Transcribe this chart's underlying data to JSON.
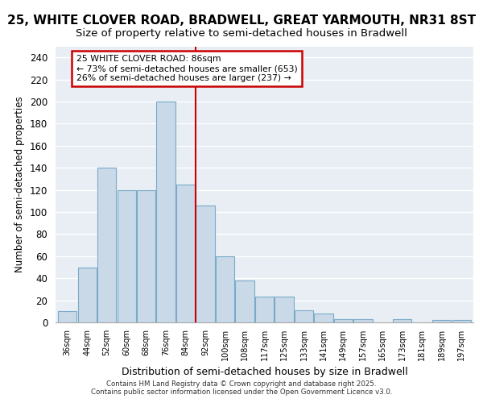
{
  "title1": "25, WHITE CLOVER ROAD, BRADWELL, GREAT YARMOUTH, NR31 8ST",
  "title2": "Size of property relative to semi-detached houses in Bradwell",
  "xlabel": "Distribution of semi-detached houses by size in Bradwell",
  "ylabel": "Number of semi-detached properties",
  "categories": [
    "36sqm",
    "44sqm",
    "52sqm",
    "60sqm",
    "68sqm",
    "76sqm",
    "84sqm",
    "92sqm",
    "100sqm",
    "108sqm",
    "117sqm",
    "125sqm",
    "133sqm",
    "141sqm",
    "149sqm",
    "157sqm",
    "165sqm",
    "173sqm",
    "181sqm",
    "189sqm",
    "197sqm"
  ],
  "values": [
    10,
    50,
    140,
    120,
    120,
    200,
    125,
    106,
    60,
    38,
    23,
    23,
    11,
    8,
    3,
    3,
    0,
    3,
    0,
    2,
    2
  ],
  "bar_color": "#c9d9e8",
  "bar_edge_color": "#7aaac8",
  "property_label": "25 WHITE CLOVER ROAD: 86sqm",
  "smaller_pct": 73,
  "smaller_count": 653,
  "larger_pct": 26,
  "larger_count": 237,
  "red_line_color": "#cc0000",
  "annotation_box_color": "#cc0000",
  "ylim": [
    0,
    250
  ],
  "yticks": [
    0,
    20,
    40,
    60,
    80,
    100,
    120,
    140,
    160,
    180,
    200,
    220,
    240
  ],
  "bg_color": "#e8eef4",
  "title_fontsize": 11,
  "subtitle_fontsize": 9.5,
  "footer_text1": "Contains HM Land Registry data © Crown copyright and database right 2025.",
  "footer_text2": "Contains public sector information licensed under the Open Government Licence v3.0."
}
